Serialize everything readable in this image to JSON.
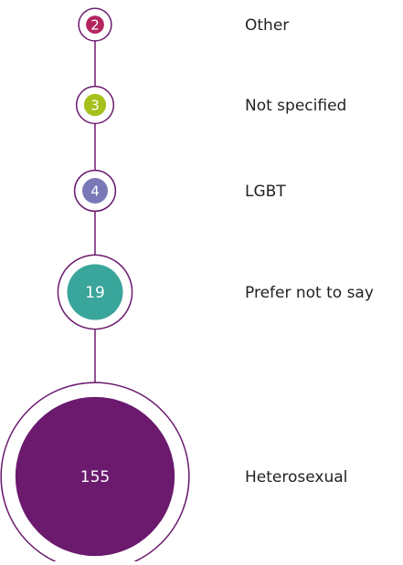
{
  "chart_data": {
    "type": "bubble",
    "categories": [
      "Other",
      "Not specified",
      "LGBT",
      "Prefer not to say",
      "Heterosexual"
    ],
    "values": [
      2,
      3,
      4,
      19,
      155
    ],
    "colors": [
      "#b3245f",
      "#a5c11b",
      "#7b78b8",
      "#3aa59a",
      "#6b1a6e"
    ],
    "line_color": "#6b1a6e"
  }
}
